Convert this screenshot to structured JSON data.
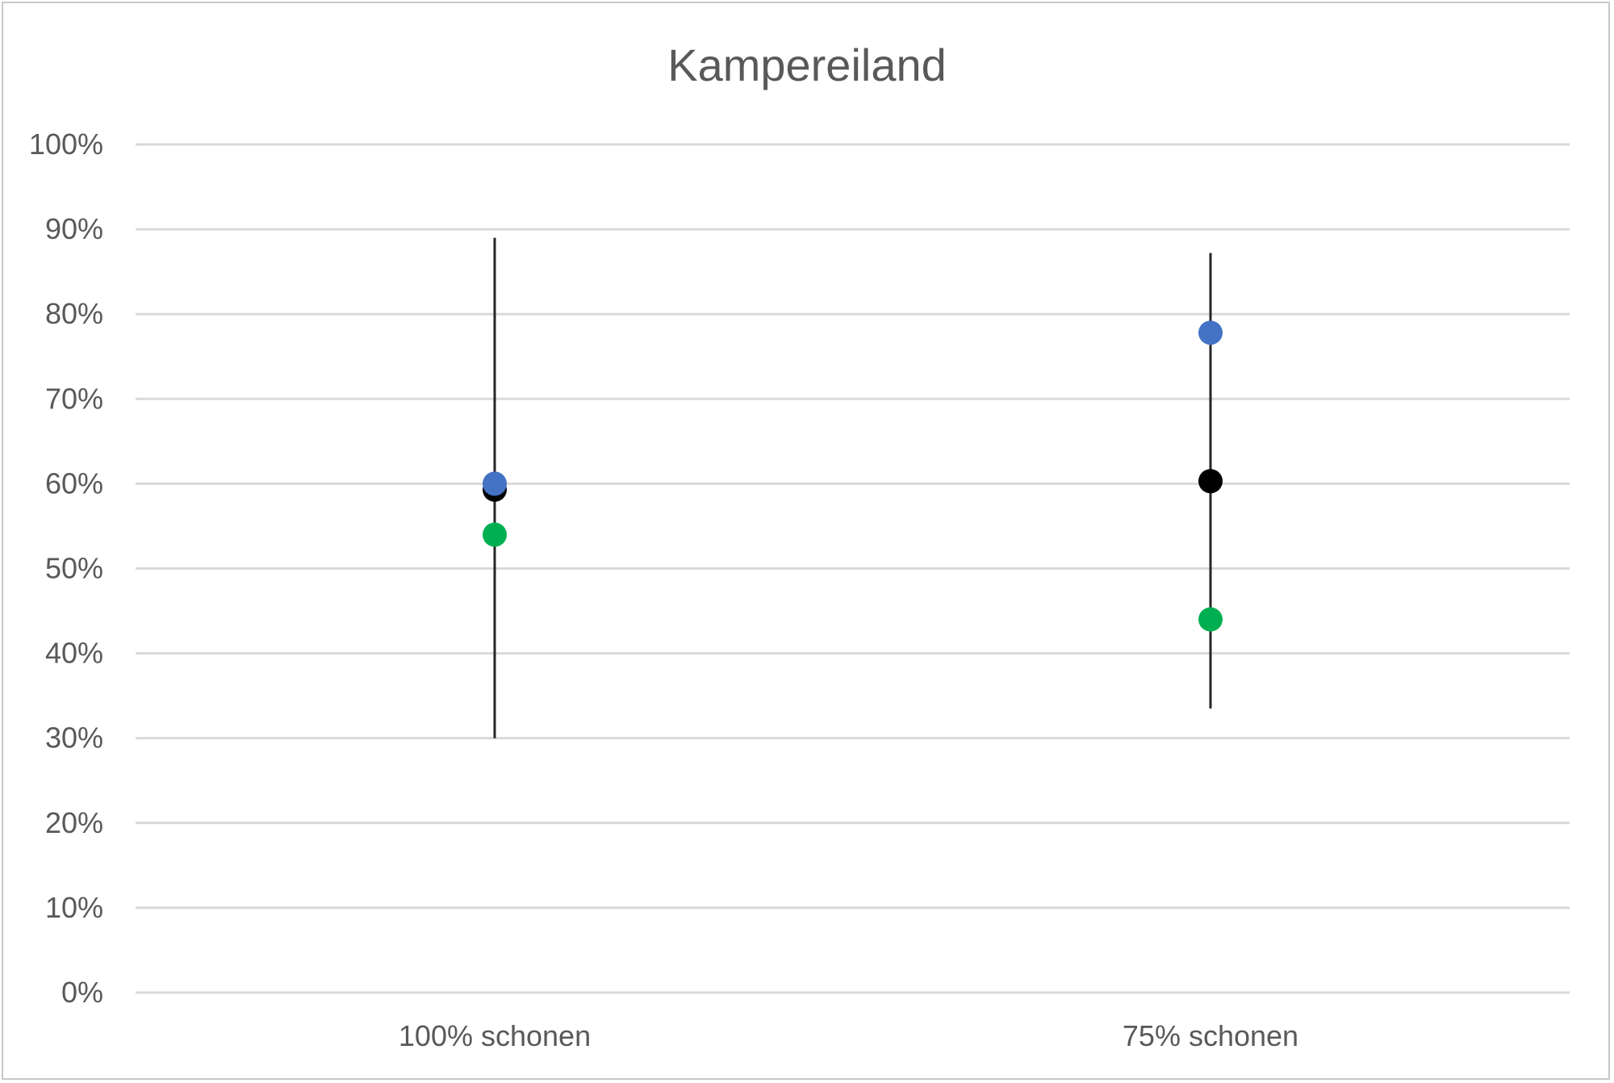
{
  "chart_data": {
    "type": "scatter",
    "title": "Kampereiland",
    "xlabel": "",
    "ylabel": "",
    "categories": [
      "100% schonen",
      "75% schonen"
    ],
    "ylim": [
      0,
      1
    ],
    "yticks": [
      0,
      0.1,
      0.2,
      0.3,
      0.4,
      0.5,
      0.6,
      0.7,
      0.8,
      0.9,
      1.0
    ],
    "ytick_labels": [
      "0%",
      "10%",
      "20%",
      "30%",
      "40%",
      "50%",
      "60%",
      "70%",
      "80%",
      "90%",
      "100%"
    ],
    "grid": true,
    "legend": "none",
    "error_bars": [
      {
        "category": "100% schonen",
        "low": 0.3,
        "high": 0.89
      },
      {
        "category": "75% schonen",
        "low": 0.335,
        "high": 0.872
      }
    ],
    "series": [
      {
        "color": "#000000",
        "values": [
          0.593,
          0.603
        ]
      },
      {
        "color": "#4472C4",
        "values": [
          0.6,
          0.778
        ]
      },
      {
        "color": "#00B050",
        "values": [
          0.54,
          0.44
        ]
      }
    ]
  }
}
